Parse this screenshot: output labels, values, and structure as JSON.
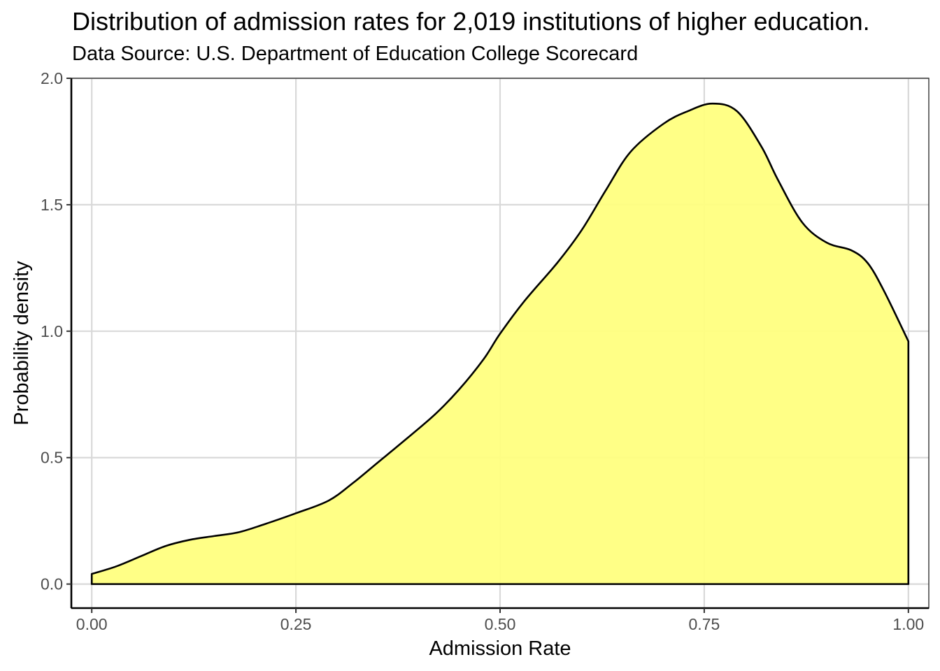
{
  "chart_data": {
    "type": "area",
    "title": "Distribution of admission rates for 2,019 institutions of higher education.",
    "subtitle": "Data Source: U.S. Department of Education College Scorecard",
    "xlabel": "Admission Rate",
    "ylabel": "Probability density",
    "xlim": [
      -0.025,
      1.025
    ],
    "ylim": [
      -0.095,
      2.0
    ],
    "x_ticks": [
      0,
      0.25,
      0.5,
      0.75,
      1.0
    ],
    "x_tick_labels": [
      "0.00",
      "0.25",
      "0.50",
      "0.75",
      "1.00"
    ],
    "y_ticks": [
      0,
      0.5,
      1.0,
      1.5,
      2.0
    ],
    "y_tick_labels": [
      "0.0",
      "0.5",
      "1.0",
      "1.5",
      "2.0"
    ],
    "grid": true,
    "fill_color": "#ffff80",
    "line_color": "#000000",
    "series": [
      {
        "x": [
          0.0,
          0.03,
          0.06,
          0.09,
          0.12,
          0.15,
          0.18,
          0.21,
          0.25,
          0.29,
          0.32,
          0.35,
          0.38,
          0.42,
          0.45,
          0.48,
          0.5,
          0.53,
          0.57,
          0.6,
          0.63,
          0.66,
          0.7,
          0.73,
          0.76,
          0.79,
          0.82,
          0.84,
          0.87,
          0.9,
          0.93,
          0.95,
          0.97,
          1.0
        ],
        "y": [
          0.04,
          0.07,
          0.11,
          0.15,
          0.175,
          0.19,
          0.205,
          0.235,
          0.28,
          0.33,
          0.4,
          0.48,
          0.56,
          0.67,
          0.77,
          0.89,
          0.99,
          1.12,
          1.27,
          1.4,
          1.56,
          1.71,
          1.82,
          1.87,
          1.9,
          1.87,
          1.73,
          1.6,
          1.43,
          1.35,
          1.32,
          1.27,
          1.16,
          0.96
        ]
      }
    ]
  }
}
